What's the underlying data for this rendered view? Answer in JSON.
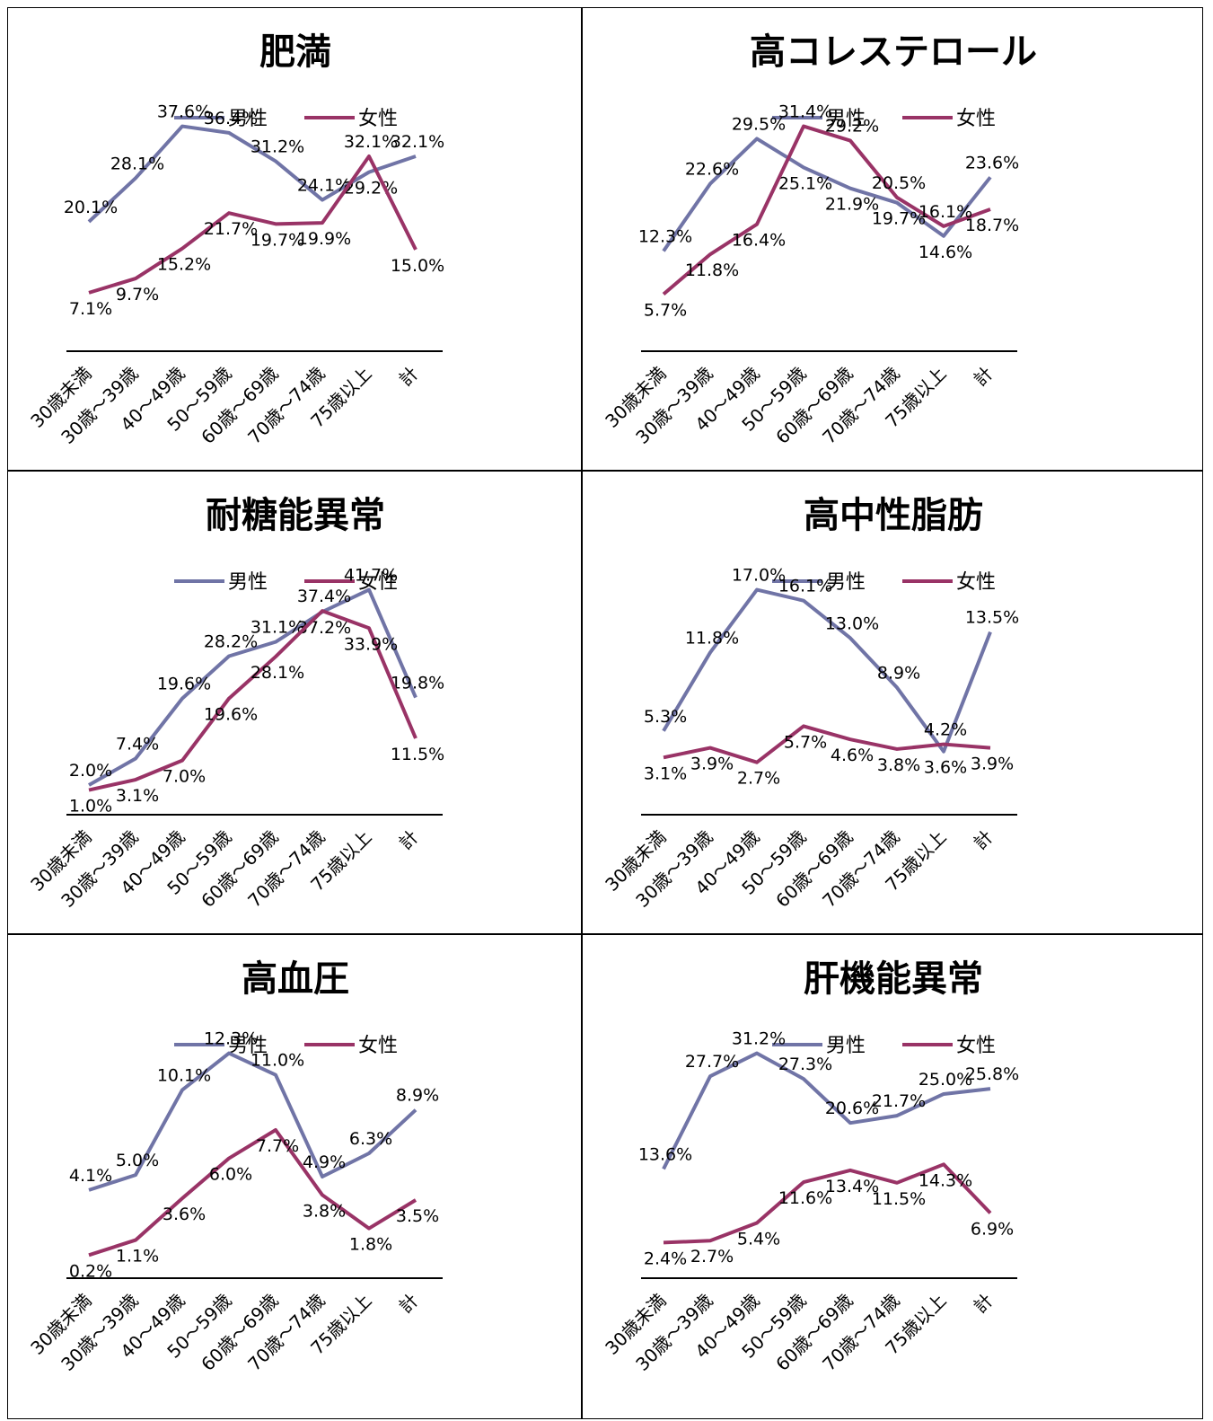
{
  "colors": {
    "male": "#7074a6",
    "female": "#993366"
  },
  "legend": {
    "male": "男性",
    "female": "女性"
  },
  "chart_data": [
    {
      "type": "line",
      "title": "肥満",
      "categories": [
        "30歳未満",
        "30歳～39歳",
        "40～49歳",
        "50～59歳",
        "60歳～69歳",
        "70歳～74歳",
        "75歳以上",
        "計"
      ],
      "series": [
        {
          "name": "男性",
          "values": [
            20.1,
            28.1,
            37.6,
            36.4,
            31.2,
            24.1,
            29.2,
            32.1
          ],
          "labels": [
            "20.1%",
            "28.1%",
            "37.6%",
            "36.4%",
            "31.2%",
            "24.1%",
            "29.2%",
            "32.1%"
          ]
        },
        {
          "name": "女性",
          "values": [
            7.1,
            9.7,
            15.2,
            21.7,
            19.7,
            19.9,
            32.1,
            15.0
          ],
          "labels": [
            "7.1%",
            "9.7%",
            "15.2%",
            "21.7%",
            "19.7%",
            "19.9%",
            "32.1%",
            "15.0%"
          ]
        }
      ]
    },
    {
      "type": "line",
      "title": "高コレステロール",
      "categories": [
        "30歳未満",
        "30歳～39歳",
        "40～49歳",
        "50～59歳",
        "60歳～69歳",
        "70歳～74歳",
        "75歳以上",
        "計"
      ],
      "series": [
        {
          "name": "男性",
          "values": [
            12.3,
            22.6,
            29.5,
            25.1,
            21.9,
            19.7,
            14.6,
            23.6
          ],
          "labels": [
            "12.3%",
            "22.6%",
            "29.5%",
            "25.1%",
            "21.9%",
            "19.7%",
            "14.6%",
            "23.6%"
          ]
        },
        {
          "name": "女性",
          "values": [
            5.7,
            11.8,
            16.4,
            31.4,
            29.2,
            20.5,
            16.1,
            18.7
          ],
          "labels": [
            "5.7%",
            "11.8%",
            "16.4%",
            "31.4%",
            "29.2%",
            "20.5%",
            "16.1%",
            "18.7%"
          ]
        }
      ]
    },
    {
      "type": "line",
      "title": "耐糖能異常",
      "categories": [
        "30歳未満",
        "30歳～39歳",
        "40～49歳",
        "50～59歳",
        "60歳～69歳",
        "70歳～74歳",
        "75歳以上",
        "計"
      ],
      "series": [
        {
          "name": "男性",
          "values": [
            2.0,
            7.4,
            19.6,
            28.2,
            31.1,
            37.2,
            41.7,
            19.8
          ],
          "labels": [
            "2.0%",
            "7.4%",
            "19.6%",
            "28.2%",
            "31.1%",
            "37.2%",
            "41.7%",
            "19.8%"
          ]
        },
        {
          "name": "女性",
          "values": [
            1.0,
            3.1,
            7.0,
            19.6,
            28.1,
            37.4,
            33.9,
            11.5
          ],
          "labels": [
            "1.0%",
            "3.1%",
            "7.0%",
            "19.6%",
            "28.1%",
            "37.4%",
            "33.9%",
            "11.5%"
          ]
        }
      ]
    },
    {
      "type": "line",
      "title": "高中性脂肪",
      "categories": [
        "30歳未満",
        "30歳～39歳",
        "40～49歳",
        "50～59歳",
        "60歳～69歳",
        "70歳～74歳",
        "75歳以上",
        "計"
      ],
      "series": [
        {
          "name": "男性",
          "values": [
            5.3,
            11.8,
            17.0,
            16.1,
            13.0,
            8.9,
            3.6,
            13.5
          ],
          "labels": [
            "5.3%",
            "11.8%",
            "17.0%",
            "16.1%",
            "13.0%",
            "8.9%",
            "3.6%",
            "13.5%"
          ]
        },
        {
          "name": "女性",
          "values": [
            3.1,
            3.9,
            2.7,
            5.7,
            4.6,
            3.8,
            4.2,
            3.9
          ],
          "labels": [
            "3.1%",
            "3.9%",
            "2.7%",
            "5.7%",
            "4.6%",
            "3.8%",
            "4.2%",
            "3.9%"
          ]
        }
      ]
    },
    {
      "type": "line",
      "title": "高血圧",
      "categories": [
        "30歳未満",
        "30歳～39歳",
        "40～49歳",
        "50～59歳",
        "60歳～69歳",
        "70歳～74歳",
        "75歳以上",
        "計"
      ],
      "series": [
        {
          "name": "男性",
          "values": [
            4.1,
            5.0,
            10.1,
            12.3,
            11.0,
            4.9,
            6.3,
            8.9
          ],
          "labels": [
            "4.1%",
            "5.0%",
            "10.1%",
            "12.3%",
            "11.0%",
            "4.9%",
            "6.3%",
            "8.9%"
          ]
        },
        {
          "name": "女性",
          "values": [
            0.2,
            1.1,
            3.6,
            6.0,
            7.7,
            3.8,
            1.8,
            3.5
          ],
          "labels": [
            "0.2%",
            "1.1%",
            "3.6%",
            "6.0%",
            "7.7%",
            "3.8%",
            "1.8%",
            "3.5%"
          ]
        }
      ]
    },
    {
      "type": "line",
      "title": "肝機能異常",
      "categories": [
        "30歳未満",
        "30歳～39歳",
        "40～49歳",
        "50～59歳",
        "60歳～69歳",
        "70歳～74歳",
        "75歳以上",
        "計"
      ],
      "series": [
        {
          "name": "男性",
          "values": [
            13.6,
            27.7,
            31.2,
            27.3,
            20.6,
            21.7,
            25.0,
            25.8
          ],
          "labels": [
            "13.6%",
            "27.7%",
            "31.2%",
            "27.3%",
            "20.6%",
            "21.7%",
            "25.0%",
            "25.8%"
          ]
        },
        {
          "name": "女性",
          "values": [
            2.4,
            2.7,
            5.4,
            11.6,
            13.4,
            11.5,
            14.3,
            6.9
          ],
          "labels": [
            "2.4%",
            "2.7%",
            "5.4%",
            "11.6%",
            "13.4%",
            "11.5%",
            "14.3%",
            "6.9%"
          ]
        }
      ]
    }
  ]
}
